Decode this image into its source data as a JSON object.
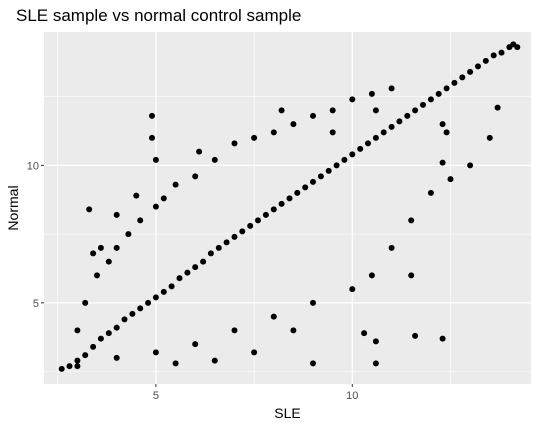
{
  "chart_data": {
    "type": "scatter",
    "title": "SLE sample vs normal control sample",
    "xlabel": "SLE",
    "ylabel": "Normal",
    "xlim": [
      2.15,
      14.55
    ],
    "ylim": [
      2.05,
      14.85
    ],
    "x_ticks": [
      5,
      10
    ],
    "y_ticks": [
      5,
      10
    ],
    "x_minor_ticks": [
      2.5,
      7.5,
      12.5
    ],
    "y_minor_ticks": [
      2.5,
      7.5,
      12.5
    ],
    "grid": true,
    "legend": "none",
    "colors": {
      "panel": "#ebebeb",
      "grid": "#ffffff",
      "point": "#000000",
      "tick": "#4d4d4d"
    },
    "points": [
      [
        2.6,
        2.6
      ],
      [
        2.8,
        2.7
      ],
      [
        3.0,
        2.9
      ],
      [
        3.2,
        3.1
      ],
      [
        3.4,
        3.4
      ],
      [
        3.6,
        3.7
      ],
      [
        3.8,
        3.9
      ],
      [
        4.0,
        4.1
      ],
      [
        4.2,
        4.4
      ],
      [
        4.4,
        4.6
      ],
      [
        4.6,
        4.8
      ],
      [
        4.8,
        5.0
      ],
      [
        5.0,
        5.2
      ],
      [
        5.2,
        5.4
      ],
      [
        5.4,
        5.6
      ],
      [
        5.6,
        5.9
      ],
      [
        5.8,
        6.1
      ],
      [
        6.0,
        6.3
      ],
      [
        6.2,
        6.5
      ],
      [
        6.4,
        6.8
      ],
      [
        6.6,
        7.0
      ],
      [
        6.8,
        7.2
      ],
      [
        7.0,
        7.4
      ],
      [
        7.2,
        7.6
      ],
      [
        7.4,
        7.8
      ],
      [
        7.6,
        8.0
      ],
      [
        7.8,
        8.2
      ],
      [
        8.0,
        8.4
      ],
      [
        8.2,
        8.6
      ],
      [
        8.4,
        8.8
      ],
      [
        8.6,
        9.0
      ],
      [
        8.8,
        9.2
      ],
      [
        9.0,
        9.4
      ],
      [
        9.2,
        9.6
      ],
      [
        9.4,
        9.8
      ],
      [
        9.6,
        10.0
      ],
      [
        9.8,
        10.2
      ],
      [
        10.0,
        10.4
      ],
      [
        10.2,
        10.6
      ],
      [
        10.4,
        10.8
      ],
      [
        10.6,
        11.0
      ],
      [
        10.8,
        11.2
      ],
      [
        11.0,
        11.4
      ],
      [
        11.2,
        11.6
      ],
      [
        11.4,
        11.8
      ],
      [
        11.6,
        12.0
      ],
      [
        11.8,
        12.2
      ],
      [
        12.0,
        12.4
      ],
      [
        12.2,
        12.6
      ],
      [
        12.4,
        12.8
      ],
      [
        12.6,
        13.0
      ],
      [
        12.8,
        13.2
      ],
      [
        13.0,
        13.4
      ],
      [
        13.2,
        13.6
      ],
      [
        13.4,
        13.8
      ],
      [
        13.6,
        14.0
      ],
      [
        13.8,
        14.1
      ],
      [
        14.0,
        14.3
      ],
      [
        14.1,
        14.4
      ],
      [
        14.2,
        14.3
      ],
      [
        3.0,
        4.0
      ],
      [
        3.2,
        5.0
      ],
      [
        3.5,
        6.0
      ],
      [
        3.8,
        6.5
      ],
      [
        4.0,
        7.0
      ],
      [
        4.3,
        7.5
      ],
      [
        4.6,
        8.0
      ],
      [
        5.0,
        8.5
      ],
      [
        3.3,
        8.4
      ],
      [
        4.0,
        8.2
      ],
      [
        4.5,
        8.9
      ],
      [
        5.2,
        8.8
      ],
      [
        5.5,
        9.3
      ],
      [
        6.0,
        9.6
      ],
      [
        6.5,
        10.2
      ],
      [
        7.0,
        10.8
      ],
      [
        7.5,
        11.0
      ],
      [
        8.0,
        11.2
      ],
      [
        8.5,
        11.5
      ],
      [
        9.0,
        11.8
      ],
      [
        9.5,
        12.0
      ],
      [
        10.0,
        12.4
      ],
      [
        10.5,
        12.6
      ],
      [
        11.0,
        12.8
      ],
      [
        3.0,
        2.7
      ],
      [
        4.0,
        3.0
      ],
      [
        5.0,
        3.2
      ],
      [
        6.0,
        3.5
      ],
      [
        7.0,
        4.0
      ],
      [
        8.0,
        4.5
      ],
      [
        9.0,
        5.0
      ],
      [
        10.0,
        5.5
      ],
      [
        10.5,
        6.0
      ],
      [
        11.0,
        7.0
      ],
      [
        11.5,
        8.0
      ],
      [
        12.0,
        9.0
      ],
      [
        12.5,
        9.5
      ],
      [
        13.0,
        10.0
      ],
      [
        13.5,
        11.0
      ],
      [
        4.9,
        11.8
      ],
      [
        4.9,
        11.0
      ],
      [
        5.0,
        10.2
      ],
      [
        6.1,
        10.5
      ],
      [
        8.2,
        12.0
      ],
      [
        9.5,
        11.2
      ],
      [
        10.6,
        12.0
      ],
      [
        12.3,
        11.5
      ],
      [
        13.7,
        12.1
      ],
      [
        12.4,
        11.2
      ],
      [
        12.3,
        10.1
      ],
      [
        11.5,
        6.0
      ],
      [
        10.6,
        3.6
      ],
      [
        10.3,
        3.9
      ],
      [
        8.5,
        4.0
      ],
      [
        9.0,
        2.8
      ],
      [
        10.6,
        2.8
      ],
      [
        11.6,
        3.8
      ],
      [
        12.3,
        3.7
      ],
      [
        7.5,
        3.2
      ],
      [
        6.5,
        2.9
      ],
      [
        5.5,
        2.8
      ],
      [
        3.6,
        7.0
      ],
      [
        3.4,
        6.8
      ]
    ]
  }
}
